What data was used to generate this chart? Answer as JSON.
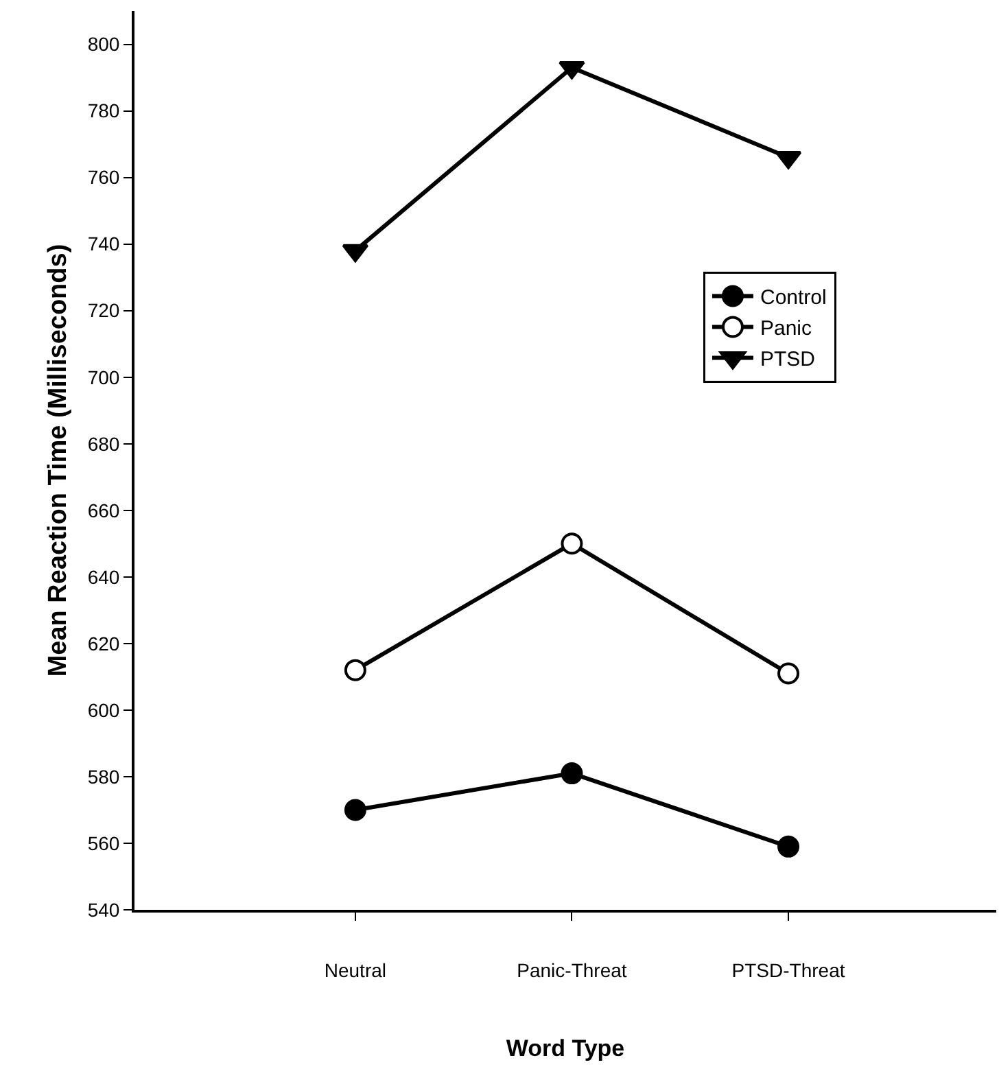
{
  "chart_data": {
    "type": "line",
    "xlabel": "Word Type",
    "ylabel": "Mean Reaction Time (Milliseconds)",
    "categories": [
      "Neutral",
      "Panic-Threat",
      "PTSD-Threat"
    ],
    "series": [
      {
        "name": "Control",
        "color": "#000000",
        "marker": "circle",
        "values": [
          570,
          581,
          559
        ]
      },
      {
        "name": "Panic",
        "color": "#000000",
        "marker": "circle-open",
        "values": [
          612,
          650,
          611
        ]
      },
      {
        "name": "PTSD",
        "color": "#000000",
        "marker": "triangle",
        "values": [
          738,
          793,
          766
        ]
      }
    ],
    "ylim": [
      540,
      810
    ],
    "yticks": [
      540,
      560,
      580,
      600,
      620,
      640,
      660,
      680,
      700,
      720,
      740,
      760,
      780,
      800
    ],
    "legend": "right",
    "line_style": "solid"
  }
}
